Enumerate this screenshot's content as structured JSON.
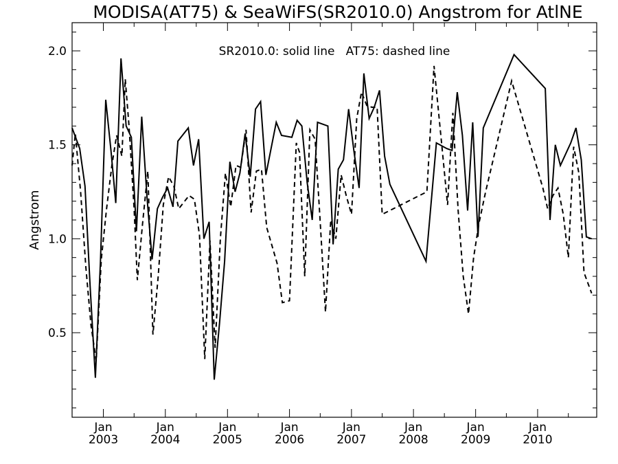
{
  "chart_data": {
    "type": "line",
    "title": "MODISA(AT75) & SeaWiFS(SR2010.0)  Angstrom for AtlNE",
    "ylabel": "Angstrom",
    "xlabel": "",
    "annotation": "SR2010.0: solid line   AT75: dashed line",
    "xlim": [
      "2002-07-01",
      "2010-12-15"
    ],
    "ylim": [
      0.05,
      2.15
    ],
    "yticks": [
      0.5,
      1.0,
      1.5,
      2.0
    ],
    "ytick_labels": [
      "0.5",
      "1.0",
      "1.5",
      "2.0"
    ],
    "xticks": [
      {
        "date": "2003-01-01",
        "month": "Jan",
        "year": "2003"
      },
      {
        "date": "2004-01-01",
        "month": "Jan",
        "year": "2004"
      },
      {
        "date": "2005-01-01",
        "month": "Jan",
        "year": "2005"
      },
      {
        "date": "2006-01-01",
        "month": "Jan",
        "year": "2006"
      },
      {
        "date": "2007-01-01",
        "month": "Jan",
        "year": "2007"
      },
      {
        "date": "2008-01-01",
        "month": "Jan",
        "year": "2008"
      },
      {
        "date": "2009-01-01",
        "month": "Jan",
        "year": "2009"
      },
      {
        "date": "2010-01-01",
        "month": "Jan",
        "year": "2010"
      }
    ],
    "series": [
      {
        "name": "SR2010.0",
        "style": "solid",
        "color": "#000000",
        "points": [
          [
            "2002-07-01",
            1.59
          ],
          [
            "2002-08-15",
            1.48
          ],
          [
            "2002-09-15",
            1.28
          ],
          [
            "2002-10-15",
            0.75
          ],
          [
            "2002-11-15",
            0.26
          ],
          [
            "2002-12-15",
            0.88
          ],
          [
            "2003-01-15",
            1.74
          ],
          [
            "2003-02-15",
            1.47
          ],
          [
            "2003-03-15",
            1.19
          ],
          [
            "2003-04-15",
            1.96
          ],
          [
            "2003-05-15",
            1.6
          ],
          [
            "2003-06-15",
            1.54
          ],
          [
            "2003-07-15",
            1.04
          ],
          [
            "2003-08-15",
            1.65
          ],
          [
            "2003-09-15",
            1.22
          ],
          [
            "2003-10-15",
            0.89
          ],
          [
            "2003-11-15",
            1.16
          ],
          [
            "2003-12-15",
            1.22
          ],
          [
            "2004-01-15",
            1.27
          ],
          [
            "2004-02-15",
            1.17
          ],
          [
            "2004-03-15",
            1.52
          ],
          [
            "2004-05-15",
            1.59
          ],
          [
            "2004-06-15",
            1.39
          ],
          [
            "2004-07-15",
            1.53
          ],
          [
            "2004-08-15",
            1.0
          ],
          [
            "2004-09-15",
            1.09
          ],
          [
            "2004-10-15",
            0.25
          ],
          [
            "2004-11-15",
            0.55
          ],
          [
            "2004-12-15",
            0.88
          ],
          [
            "2005-01-15",
            1.41
          ],
          [
            "2005-02-15",
            1.25
          ],
          [
            "2005-03-15",
            1.35
          ],
          [
            "2005-04-15",
            1.56
          ],
          [
            "2005-05-15",
            1.33
          ],
          [
            "2005-06-15",
            1.69
          ],
          [
            "2005-07-15",
            1.73
          ],
          [
            "2005-08-15",
            1.34
          ],
          [
            "2005-10-15",
            1.62
          ],
          [
            "2005-11-15",
            1.55
          ],
          [
            "2006-01-15",
            1.54
          ],
          [
            "2006-02-15",
            1.63
          ],
          [
            "2006-03-15",
            1.6
          ],
          [
            "2006-04-15",
            1.3
          ],
          [
            "2006-05-15",
            1.1
          ],
          [
            "2006-06-15",
            1.62
          ],
          [
            "2006-07-15",
            1.61
          ],
          [
            "2006-08-15",
            1.6
          ],
          [
            "2006-09-15",
            0.97
          ],
          [
            "2006-10-15",
            1.37
          ],
          [
            "2006-11-15",
            1.42
          ],
          [
            "2006-12-15",
            1.69
          ],
          [
            "2007-01-15",
            1.47
          ],
          [
            "2007-02-15",
            1.27
          ],
          [
            "2007-03-15",
            1.88
          ],
          [
            "2007-04-15",
            1.64
          ],
          [
            "2007-05-15",
            1.7
          ],
          [
            "2007-06-15",
            1.79
          ],
          [
            "2007-07-15",
            1.44
          ],
          [
            "2007-08-15",
            1.29
          ],
          [
            "2008-03-15",
            0.88
          ],
          [
            "2008-05-15",
            1.51
          ],
          [
            "2008-07-15",
            1.48
          ],
          [
            "2008-08-15",
            1.47
          ],
          [
            "2008-09-15",
            1.78
          ],
          [
            "2008-10-15",
            1.55
          ],
          [
            "2008-11-15",
            1.15
          ],
          [
            "2008-12-15",
            1.62
          ],
          [
            "2009-01-15",
            1.01
          ],
          [
            "2009-02-15",
            1.59
          ],
          [
            "2009-08-15",
            1.98
          ],
          [
            "2010-02-15",
            1.8
          ],
          [
            "2010-03-15",
            1.1
          ],
          [
            "2010-04-15",
            1.5
          ],
          [
            "2010-05-15",
            1.39
          ],
          [
            "2010-07-15",
            1.51
          ],
          [
            "2010-08-15",
            1.59
          ],
          [
            "2010-09-15",
            1.42
          ],
          [
            "2010-10-15",
            1.01
          ],
          [
            "2010-11-15",
            1.0
          ]
        ]
      },
      {
        "name": "AT75",
        "style": "dashed",
        "color": "#000000",
        "points": [
          [
            "2002-07-01",
            1.39
          ],
          [
            "2002-07-20",
            1.56
          ],
          [
            "2002-08-20",
            1.25
          ],
          [
            "2002-09-20",
            0.85
          ],
          [
            "2002-10-20",
            0.54
          ],
          [
            "2002-11-20",
            0.35
          ],
          [
            "2002-12-20",
            0.89
          ],
          [
            "2003-01-20",
            1.16
          ],
          [
            "2003-02-20",
            1.39
          ],
          [
            "2003-03-20",
            1.55
          ],
          [
            "2003-04-20",
            1.44
          ],
          [
            "2003-05-10",
            1.85
          ],
          [
            "2003-06-01",
            1.6
          ],
          [
            "2003-07-01",
            1.16
          ],
          [
            "2003-07-20",
            0.78
          ],
          [
            "2003-08-20",
            1.08
          ],
          [
            "2003-09-20",
            1.36
          ],
          [
            "2003-10-20",
            0.49
          ],
          [
            "2003-11-20",
            0.8
          ],
          [
            "2003-12-20",
            1.18
          ],
          [
            "2004-01-20",
            1.33
          ],
          [
            "2004-02-20",
            1.28
          ],
          [
            "2004-03-20",
            1.16
          ],
          [
            "2004-05-20",
            1.23
          ],
          [
            "2004-06-20",
            1.21
          ],
          [
            "2004-07-20",
            1.02
          ],
          [
            "2004-08-20",
            0.36
          ],
          [
            "2004-09-20",
            0.99
          ],
          [
            "2004-10-20",
            0.42
          ],
          [
            "2004-11-20",
            1.0
          ],
          [
            "2004-12-20",
            1.35
          ],
          [
            "2005-01-20",
            1.17
          ],
          [
            "2005-02-20",
            1.39
          ],
          [
            "2005-03-20",
            1.38
          ],
          [
            "2005-04-20",
            1.58
          ],
          [
            "2005-05-20",
            1.14
          ],
          [
            "2005-06-20",
            1.36
          ],
          [
            "2005-07-20",
            1.37
          ],
          [
            "2005-08-20",
            1.06
          ],
          [
            "2005-10-20",
            0.87
          ],
          [
            "2005-11-20",
            0.66
          ],
          [
            "2006-01-01",
            0.67
          ],
          [
            "2006-02-10",
            1.51
          ],
          [
            "2006-03-01",
            1.46
          ],
          [
            "2006-04-01",
            0.8
          ],
          [
            "2006-05-01",
            1.58
          ],
          [
            "2006-06-01",
            1.53
          ],
          [
            "2006-07-01",
            1.09
          ],
          [
            "2006-08-01",
            0.61
          ],
          [
            "2006-09-01",
            1.1
          ],
          [
            "2006-10-01",
            1.0
          ],
          [
            "2006-11-01",
            1.34
          ],
          [
            "2006-12-01",
            1.23
          ],
          [
            "2007-01-01",
            1.13
          ],
          [
            "2007-02-01",
            1.64
          ],
          [
            "2007-03-01",
            1.78
          ],
          [
            "2007-04-01",
            1.71
          ],
          [
            "2007-05-01",
            1.7
          ],
          [
            "2007-06-01",
            1.7
          ],
          [
            "2007-07-01",
            1.13
          ],
          [
            "2008-03-20",
            1.25
          ],
          [
            "2008-05-01",
            1.92
          ],
          [
            "2008-06-20",
            1.46
          ],
          [
            "2008-07-20",
            1.18
          ],
          [
            "2008-08-20",
            1.67
          ],
          [
            "2008-09-20",
            1.15
          ],
          [
            "2008-10-20",
            0.8
          ],
          [
            "2008-11-20",
            0.6
          ],
          [
            "2008-12-20",
            0.9
          ],
          [
            "2009-01-20",
            1.08
          ],
          [
            "2009-03-01",
            1.25
          ],
          [
            "2009-08-01",
            1.84
          ],
          [
            "2010-02-01",
            1.27
          ],
          [
            "2010-03-01",
            1.16
          ],
          [
            "2010-04-01",
            1.23
          ],
          [
            "2010-05-01",
            1.27
          ],
          [
            "2010-06-01",
            1.13
          ],
          [
            "2010-07-01",
            0.9
          ],
          [
            "2010-08-01",
            1.49
          ],
          [
            "2010-09-01",
            1.35
          ],
          [
            "2010-10-01",
            0.82
          ],
          [
            "2010-11-15",
            0.71
          ]
        ]
      }
    ]
  }
}
